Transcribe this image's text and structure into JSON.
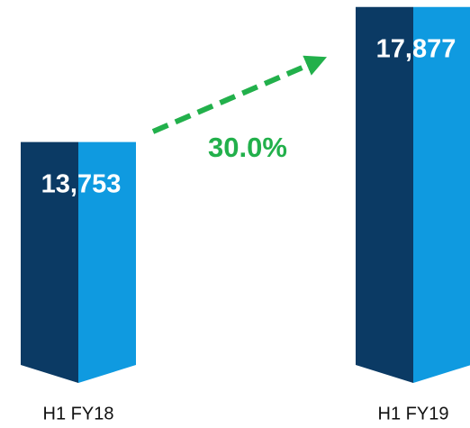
{
  "chart_data": {
    "type": "bar",
    "categories": [
      "H1 FY18",
      "H1 FY19"
    ],
    "values": [
      13753,
      17877
    ],
    "value_labels": [
      "13,753",
      "17,877"
    ],
    "colors": [
      "#0b3a64",
      "#0f9ae0"
    ],
    "ylim": [
      6400,
      18200
    ],
    "annotation": "30.0%",
    "annotation_color": "#22b04b"
  }
}
